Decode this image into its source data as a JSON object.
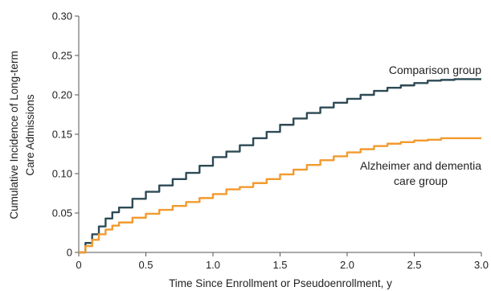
{
  "chart_data": {
    "type": "line",
    "title": "",
    "xlabel": "Time Since Enrollment or Pseudoenrollment, y",
    "ylabel": [
      "Cumulative Incidence of Long-term",
      "Care Admissions"
    ],
    "xlim": [
      0,
      3.0
    ],
    "ylim": [
      0,
      0.3
    ],
    "xticks": [
      {
        "value": 0,
        "label": "0"
      },
      {
        "value": 0.5,
        "label": "0.5"
      },
      {
        "value": 1.0,
        "label": "1.0"
      },
      {
        "value": 1.5,
        "label": "1.5"
      },
      {
        "value": 2.0,
        "label": "2.0"
      },
      {
        "value": 2.5,
        "label": "2.5"
      },
      {
        "value": 3.0,
        "label": "3.0"
      }
    ],
    "yticks": [
      {
        "value": 0,
        "label": "0"
      },
      {
        "value": 0.05,
        "label": "0.05"
      },
      {
        "value": 0.1,
        "label": "0.10"
      },
      {
        "value": 0.15,
        "label": "0.15"
      },
      {
        "value": 0.2,
        "label": "0.20"
      },
      {
        "value": 0.25,
        "label": "0.25"
      },
      {
        "value": 0.3,
        "label": "0.30"
      }
    ],
    "grid": false,
    "series": [
      {
        "name": "Comparison group",
        "label_lines": [
          "Comparison group"
        ],
        "color": "#2d4a55",
        "x": [
          0,
          0.05,
          0.1,
          0.15,
          0.2,
          0.25,
          0.3,
          0.4,
          0.5,
          0.6,
          0.7,
          0.8,
          0.9,
          1.0,
          1.1,
          1.2,
          1.3,
          1.4,
          1.5,
          1.6,
          1.7,
          1.8,
          1.9,
          2.0,
          2.1,
          2.2,
          2.3,
          2.4,
          2.5,
          2.6,
          2.7,
          2.8,
          2.9,
          3.0
        ],
        "y": [
          0,
          0.012,
          0.023,
          0.033,
          0.043,
          0.051,
          0.057,
          0.068,
          0.077,
          0.085,
          0.093,
          0.101,
          0.11,
          0.121,
          0.128,
          0.136,
          0.145,
          0.153,
          0.162,
          0.17,
          0.177,
          0.184,
          0.19,
          0.195,
          0.2,
          0.205,
          0.209,
          0.212,
          0.215,
          0.218,
          0.219,
          0.22,
          0.22,
          0.22
        ]
      },
      {
        "name": "Alzheimer and dementia care group",
        "label_lines": [
          "Alzheimer and dementia",
          "care group"
        ],
        "color": "#f29a2e",
        "x": [
          0,
          0.05,
          0.1,
          0.15,
          0.2,
          0.25,
          0.3,
          0.4,
          0.5,
          0.6,
          0.7,
          0.8,
          0.9,
          1.0,
          1.1,
          1.2,
          1.3,
          1.4,
          1.5,
          1.6,
          1.7,
          1.8,
          1.9,
          2.0,
          2.1,
          2.2,
          2.3,
          2.4,
          2.5,
          2.6,
          2.7,
          2.8,
          2.9,
          3.0
        ],
        "y": [
          0,
          0.008,
          0.016,
          0.023,
          0.029,
          0.034,
          0.038,
          0.044,
          0.049,
          0.054,
          0.059,
          0.064,
          0.069,
          0.074,
          0.08,
          0.083,
          0.088,
          0.093,
          0.099,
          0.105,
          0.111,
          0.117,
          0.122,
          0.127,
          0.131,
          0.135,
          0.138,
          0.14,
          0.142,
          0.143,
          0.145,
          0.145,
          0.145,
          0.145
        ]
      }
    ]
  }
}
